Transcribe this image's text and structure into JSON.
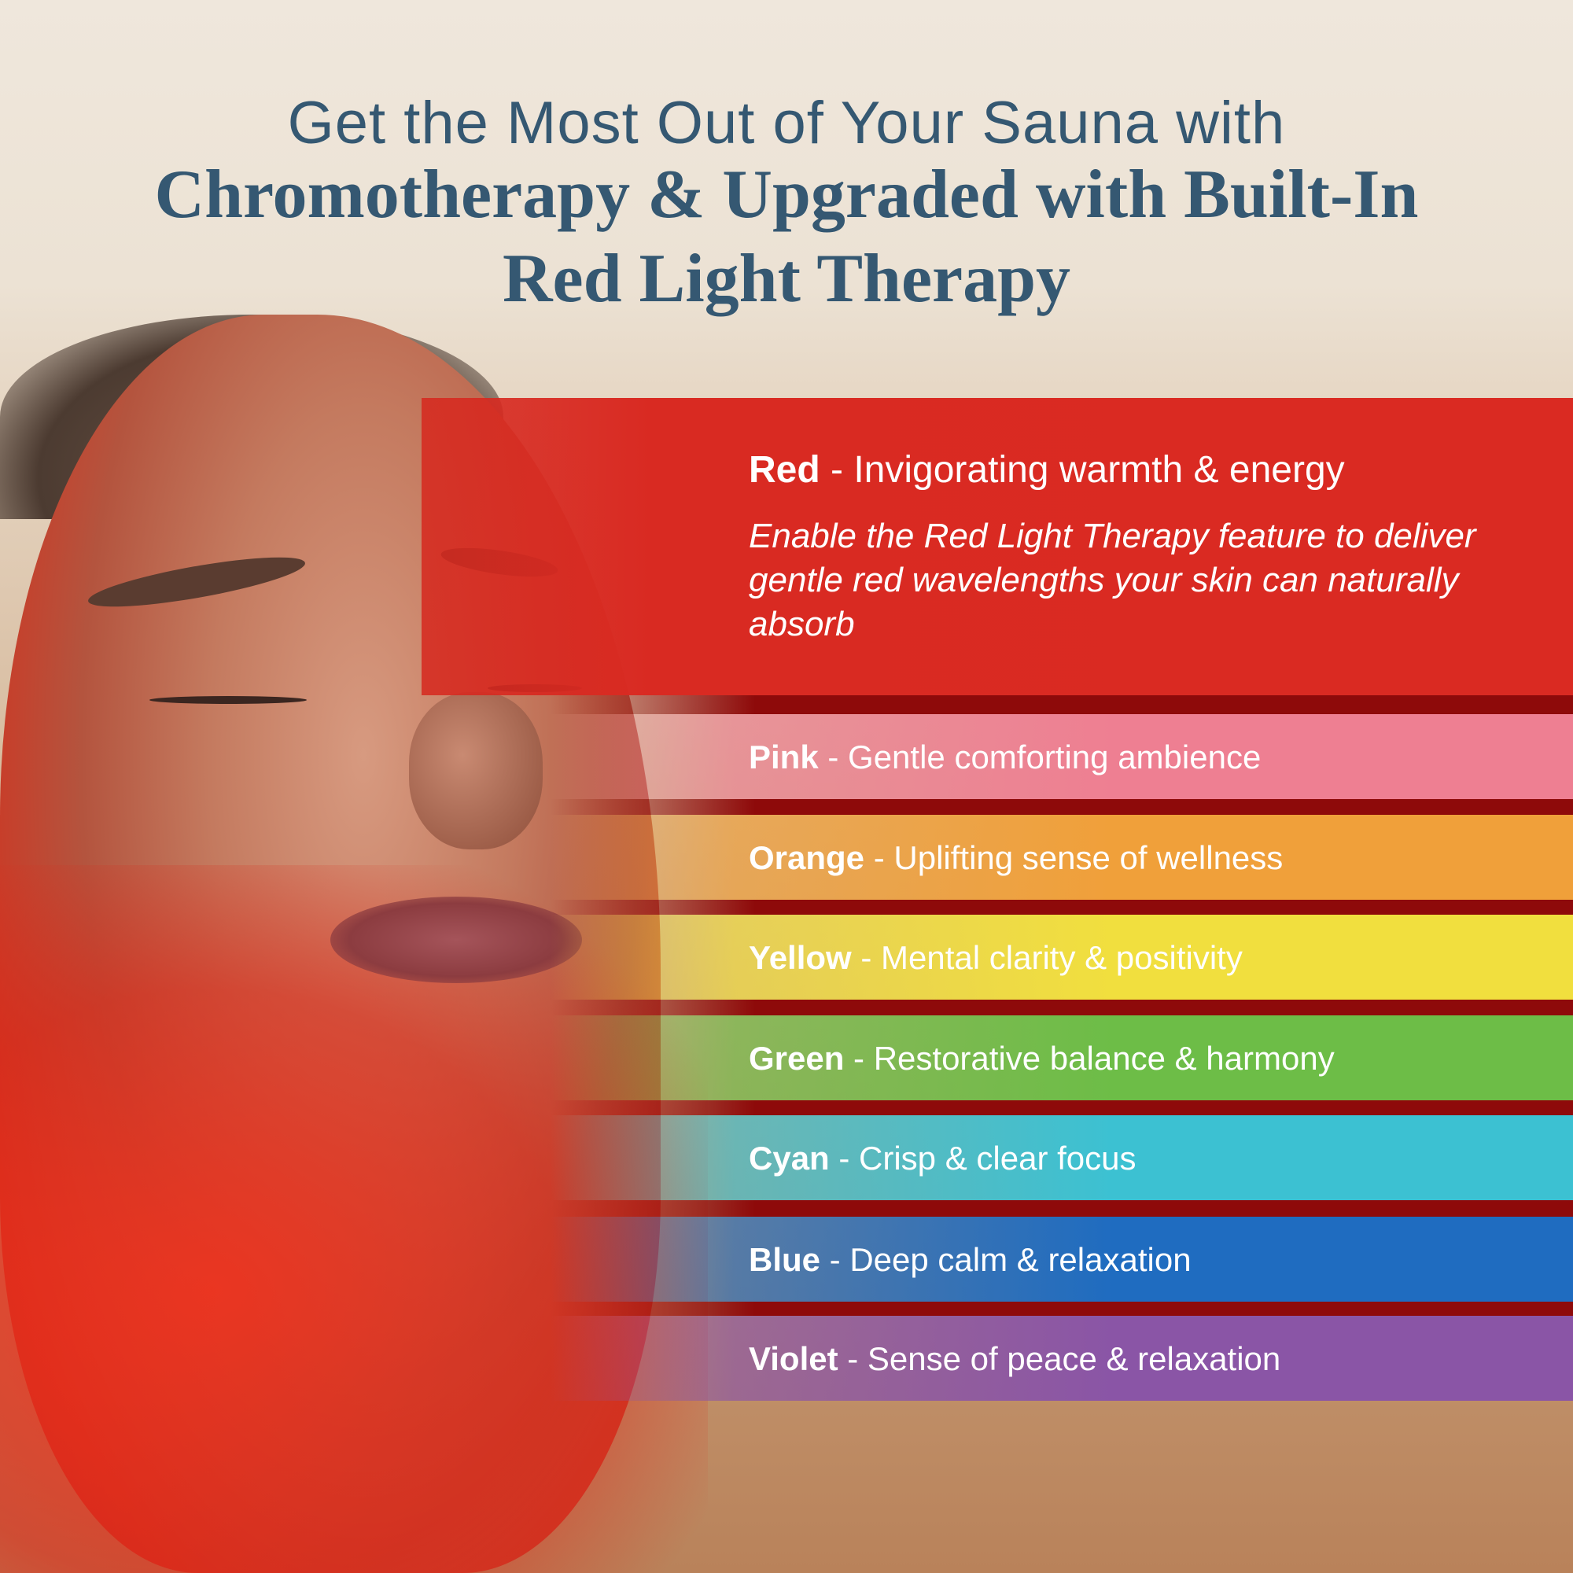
{
  "header": {
    "line1": "Get the Most Out of Your Sauna with",
    "line2": "Chromotherapy & Upgraded with Built-In",
    "line3": "Red Light Therapy"
  },
  "featured": {
    "color": "Red",
    "separator": " - ",
    "tagline": "Invigorating warmth & energy",
    "description": "Enable the Red Light Therapy feature to deliver gentle red wavelengths your skin can naturally absorb",
    "band_color": "#da2a22"
  },
  "colors": [
    {
      "name": "Pink",
      "sep": " - ",
      "text": "Gentle comforting ambience",
      "hex": "#ee7f92"
    },
    {
      "name": "Orange",
      "sep": " - ",
      "text": "Uplifting sense of wellness",
      "hex": "#f0a03a"
    },
    {
      "name": "Yellow",
      "sep": " - ",
      "text": "Mental clarity & positivity",
      "hex": "#f1df3e"
    },
    {
      "name": "Green",
      "sep": " - ",
      "text": "Restorative balance & harmony",
      "hex": "#6dbd47"
    },
    {
      "name": "Cyan",
      "sep": " - ",
      "text": "Crisp & clear focus",
      "hex": "#3cc1d2"
    },
    {
      "name": "Blue",
      "sep": " - ",
      "text": "Deep calm & relaxation",
      "hex": "#1f6cc0"
    },
    {
      "name": "Violet",
      "sep": " - ",
      "text": "Sense of peace & relaxation",
      "hex": "#8a55a6"
    }
  ]
}
